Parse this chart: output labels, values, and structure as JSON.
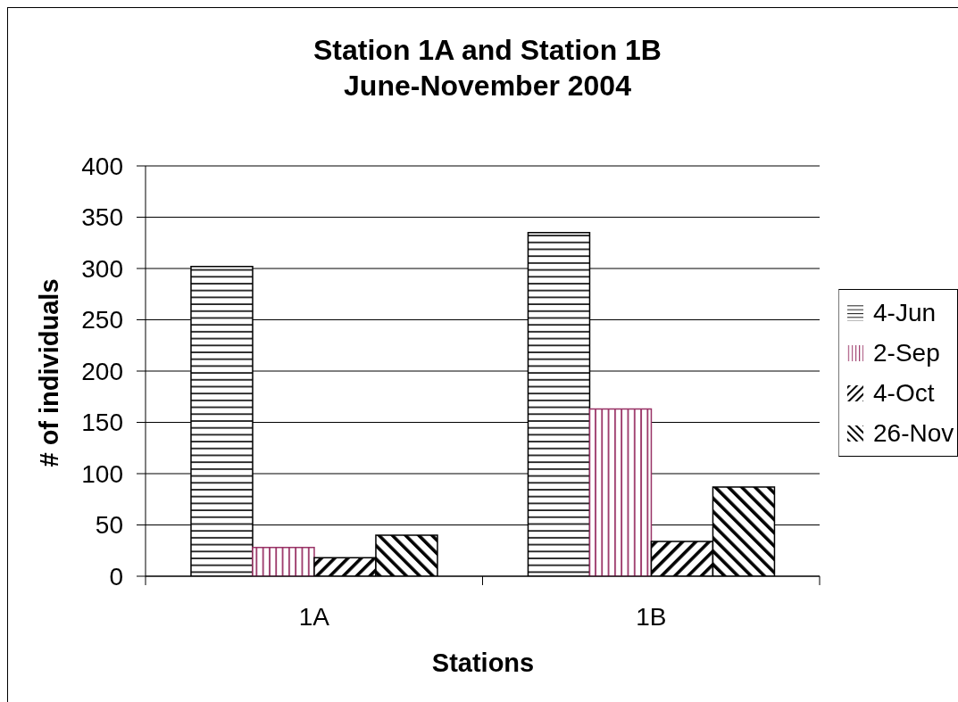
{
  "chart_data": {
    "type": "bar",
    "title": "Station 1A and Station 1B",
    "subtitle": "June-November 2004",
    "xlabel": "Stations",
    "ylabel": "# of individuals",
    "categories": [
      "1A",
      "1B"
    ],
    "series": [
      {
        "name": "4-Jun",
        "color": "#000000",
        "values": [
          302,
          335
        ]
      },
      {
        "name": "2-Sep",
        "color": "#993366",
        "values": [
          28,
          163
        ]
      },
      {
        "name": "4-Oct",
        "color": "#000000",
        "values": [
          18,
          34
        ]
      },
      {
        "name": "26-Nov",
        "color": "#000000",
        "values": [
          40,
          87
        ]
      }
    ],
    "ylim": [
      0,
      400
    ],
    "yticks": [
      0,
      50,
      100,
      150,
      200,
      250,
      300,
      350,
      400
    ],
    "grid": "y",
    "legend": "right"
  }
}
